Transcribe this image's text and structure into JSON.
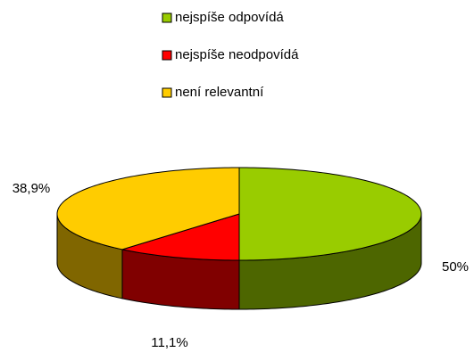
{
  "chart_data": {
    "type": "pie",
    "categories": [
      "nejspíše odpovídá",
      "nejspíše neodpovídá",
      "není relevantní"
    ],
    "values": [
      50,
      11.1,
      38.9
    ],
    "value_labels": [
      "50%",
      "11,1%",
      "38,9%"
    ],
    "colors": [
      "#99cc00",
      "#ff0000",
      "#ffcc00"
    ],
    "side_colors": [
      "#4d6600",
      "#800000",
      "#806600"
    ],
    "legend": "top"
  }
}
